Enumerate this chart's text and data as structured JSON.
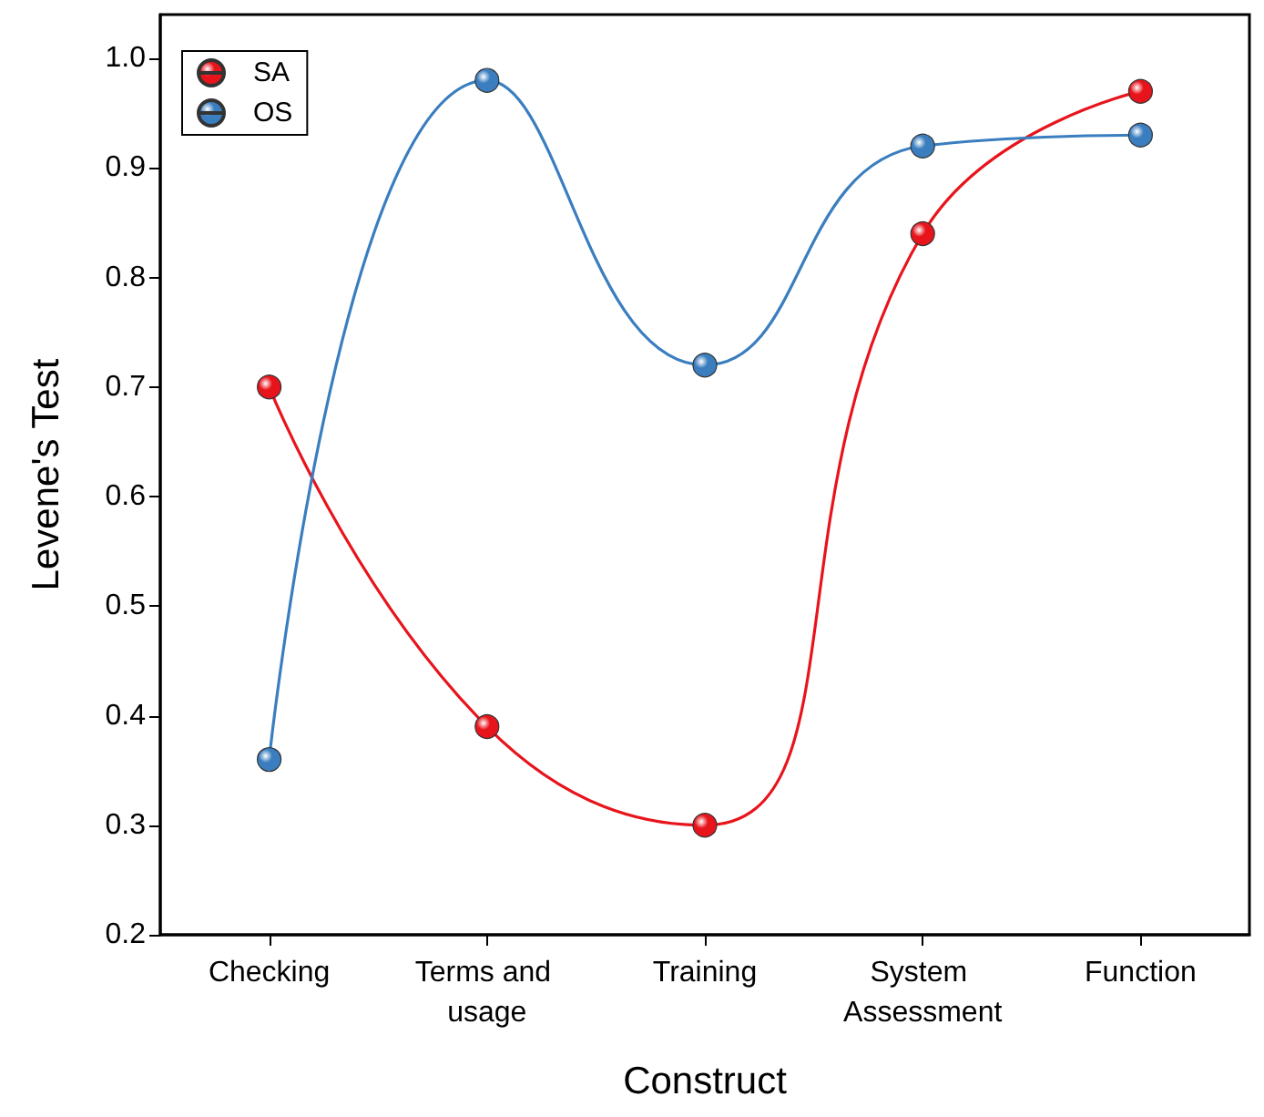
{
  "chart_data": {
    "type": "line",
    "xlabel": "Construct",
    "ylabel": "Levene's Test",
    "categories": [
      "Checking",
      "Terms and usage",
      "Training",
      "System Assessment",
      "Function"
    ],
    "series": [
      {
        "name": "SA",
        "color": "#e8141c",
        "values": [
          0.7,
          0.39,
          0.3,
          0.84,
          0.97
        ]
      },
      {
        "name": "OS",
        "color": "#3a7ebf",
        "values": [
          0.36,
          0.98,
          0.72,
          0.92,
          0.93
        ]
      }
    ],
    "ylim": [
      0.2,
      1.04
    ],
    "yticks": [
      {
        "value": 0.2,
        "label": "0.2"
      },
      {
        "value": 0.3,
        "label": "0.3"
      },
      {
        "value": 0.4,
        "label": "0.4"
      },
      {
        "value": 0.5,
        "label": "0.5"
      },
      {
        "value": 0.6,
        "label": "0.6"
      },
      {
        "value": 0.7,
        "label": "0.7"
      },
      {
        "value": 0.8,
        "label": "0.8"
      },
      {
        "value": 0.9,
        "label": "0.9"
      },
      {
        "value": 1.0,
        "label": "1.0"
      }
    ],
    "grid": false,
    "legend": "top left",
    "marker": "circle",
    "line_style": "solid"
  }
}
